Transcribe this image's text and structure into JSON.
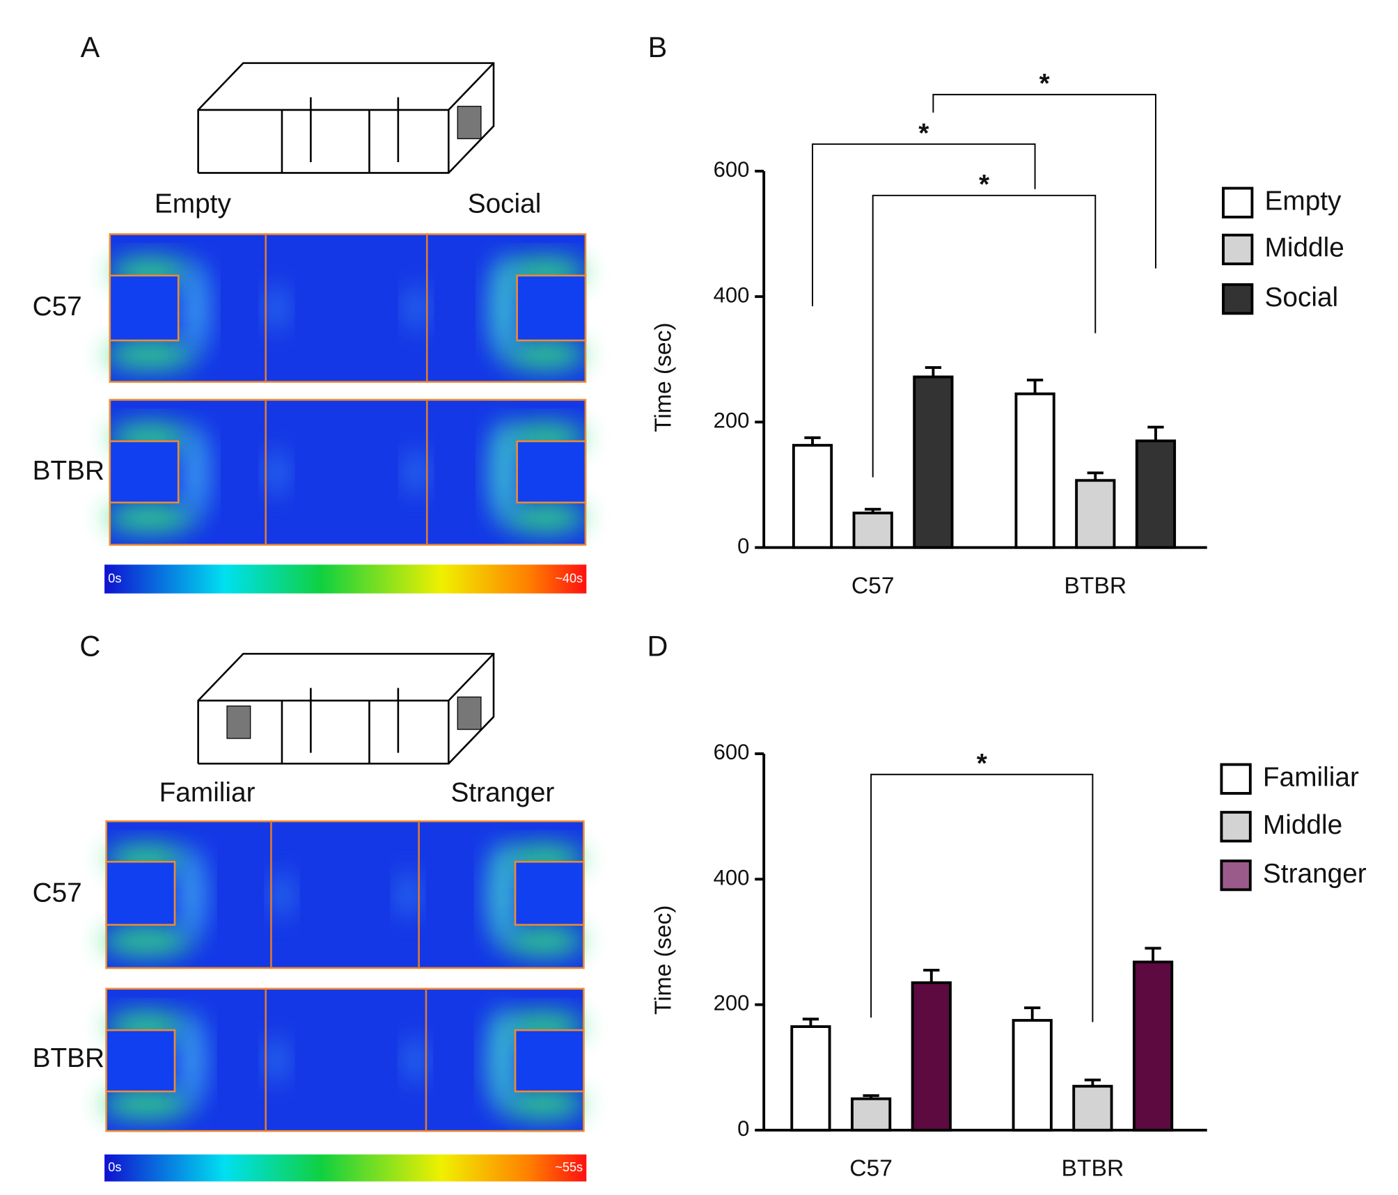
{
  "labels": [
    "A",
    "B",
    "C",
    "D"
  ],
  "heatmaps": [
    {
      "arena_labels": [
        "Empty",
        "Social"
      ],
      "rows": [
        "C57",
        "BTBR"
      ],
      "colorbar": [
        "0s",
        "~40s"
      ]
    },
    {
      "arena_labels": [
        "Familiar",
        "Stranger"
      ],
      "rows": [
        "C57",
        "BTBR"
      ],
      "colorbar": [
        "0s",
        "~55s"
      ]
    }
  ],
  "chart_data": [
    {
      "type": "bar",
      "ylabel": "Time (sec)",
      "categories": [
        "C57",
        "BTBR"
      ],
      "series": [
        {
          "name": "Empty",
          "color": "#ffffff",
          "values": [
            163,
            245
          ],
          "errors": [
            12,
            22
          ]
        },
        {
          "name": "Middle",
          "color": "#d3d3d3",
          "values": [
            55,
            107
          ],
          "errors": [
            6,
            12
          ]
        },
        {
          "name": "Social",
          "color": "#333333",
          "values": [
            272,
            170
          ],
          "errors": [
            15,
            22
          ]
        }
      ],
      "ylim": [
        0,
        600
      ],
      "yticks": [
        0,
        200,
        400,
        600
      ],
      "annotations": [
        "*",
        "*",
        "*"
      ]
    },
    {
      "type": "bar",
      "ylabel": "Time (sec)",
      "categories": [
        "C57",
        "BTBR"
      ],
      "series": [
        {
          "name": "Familiar",
          "color": "#ffffff",
          "values": [
            165,
            175
          ],
          "errors": [
            12,
            20
          ]
        },
        {
          "name": "Middle",
          "color": "#d3d3d3",
          "values": [
            50,
            70
          ],
          "errors": [
            5,
            10
          ]
        },
        {
          "name": "Stranger",
          "color": "#5c0a3f",
          "legend_color": "#9a5b8a",
          "values": [
            235,
            268
          ],
          "errors": [
            20,
            22
          ]
        }
      ],
      "ylim": [
        0,
        600
      ],
      "yticks": [
        0,
        200,
        400,
        600
      ],
      "annotations": [
        "*"
      ]
    }
  ]
}
